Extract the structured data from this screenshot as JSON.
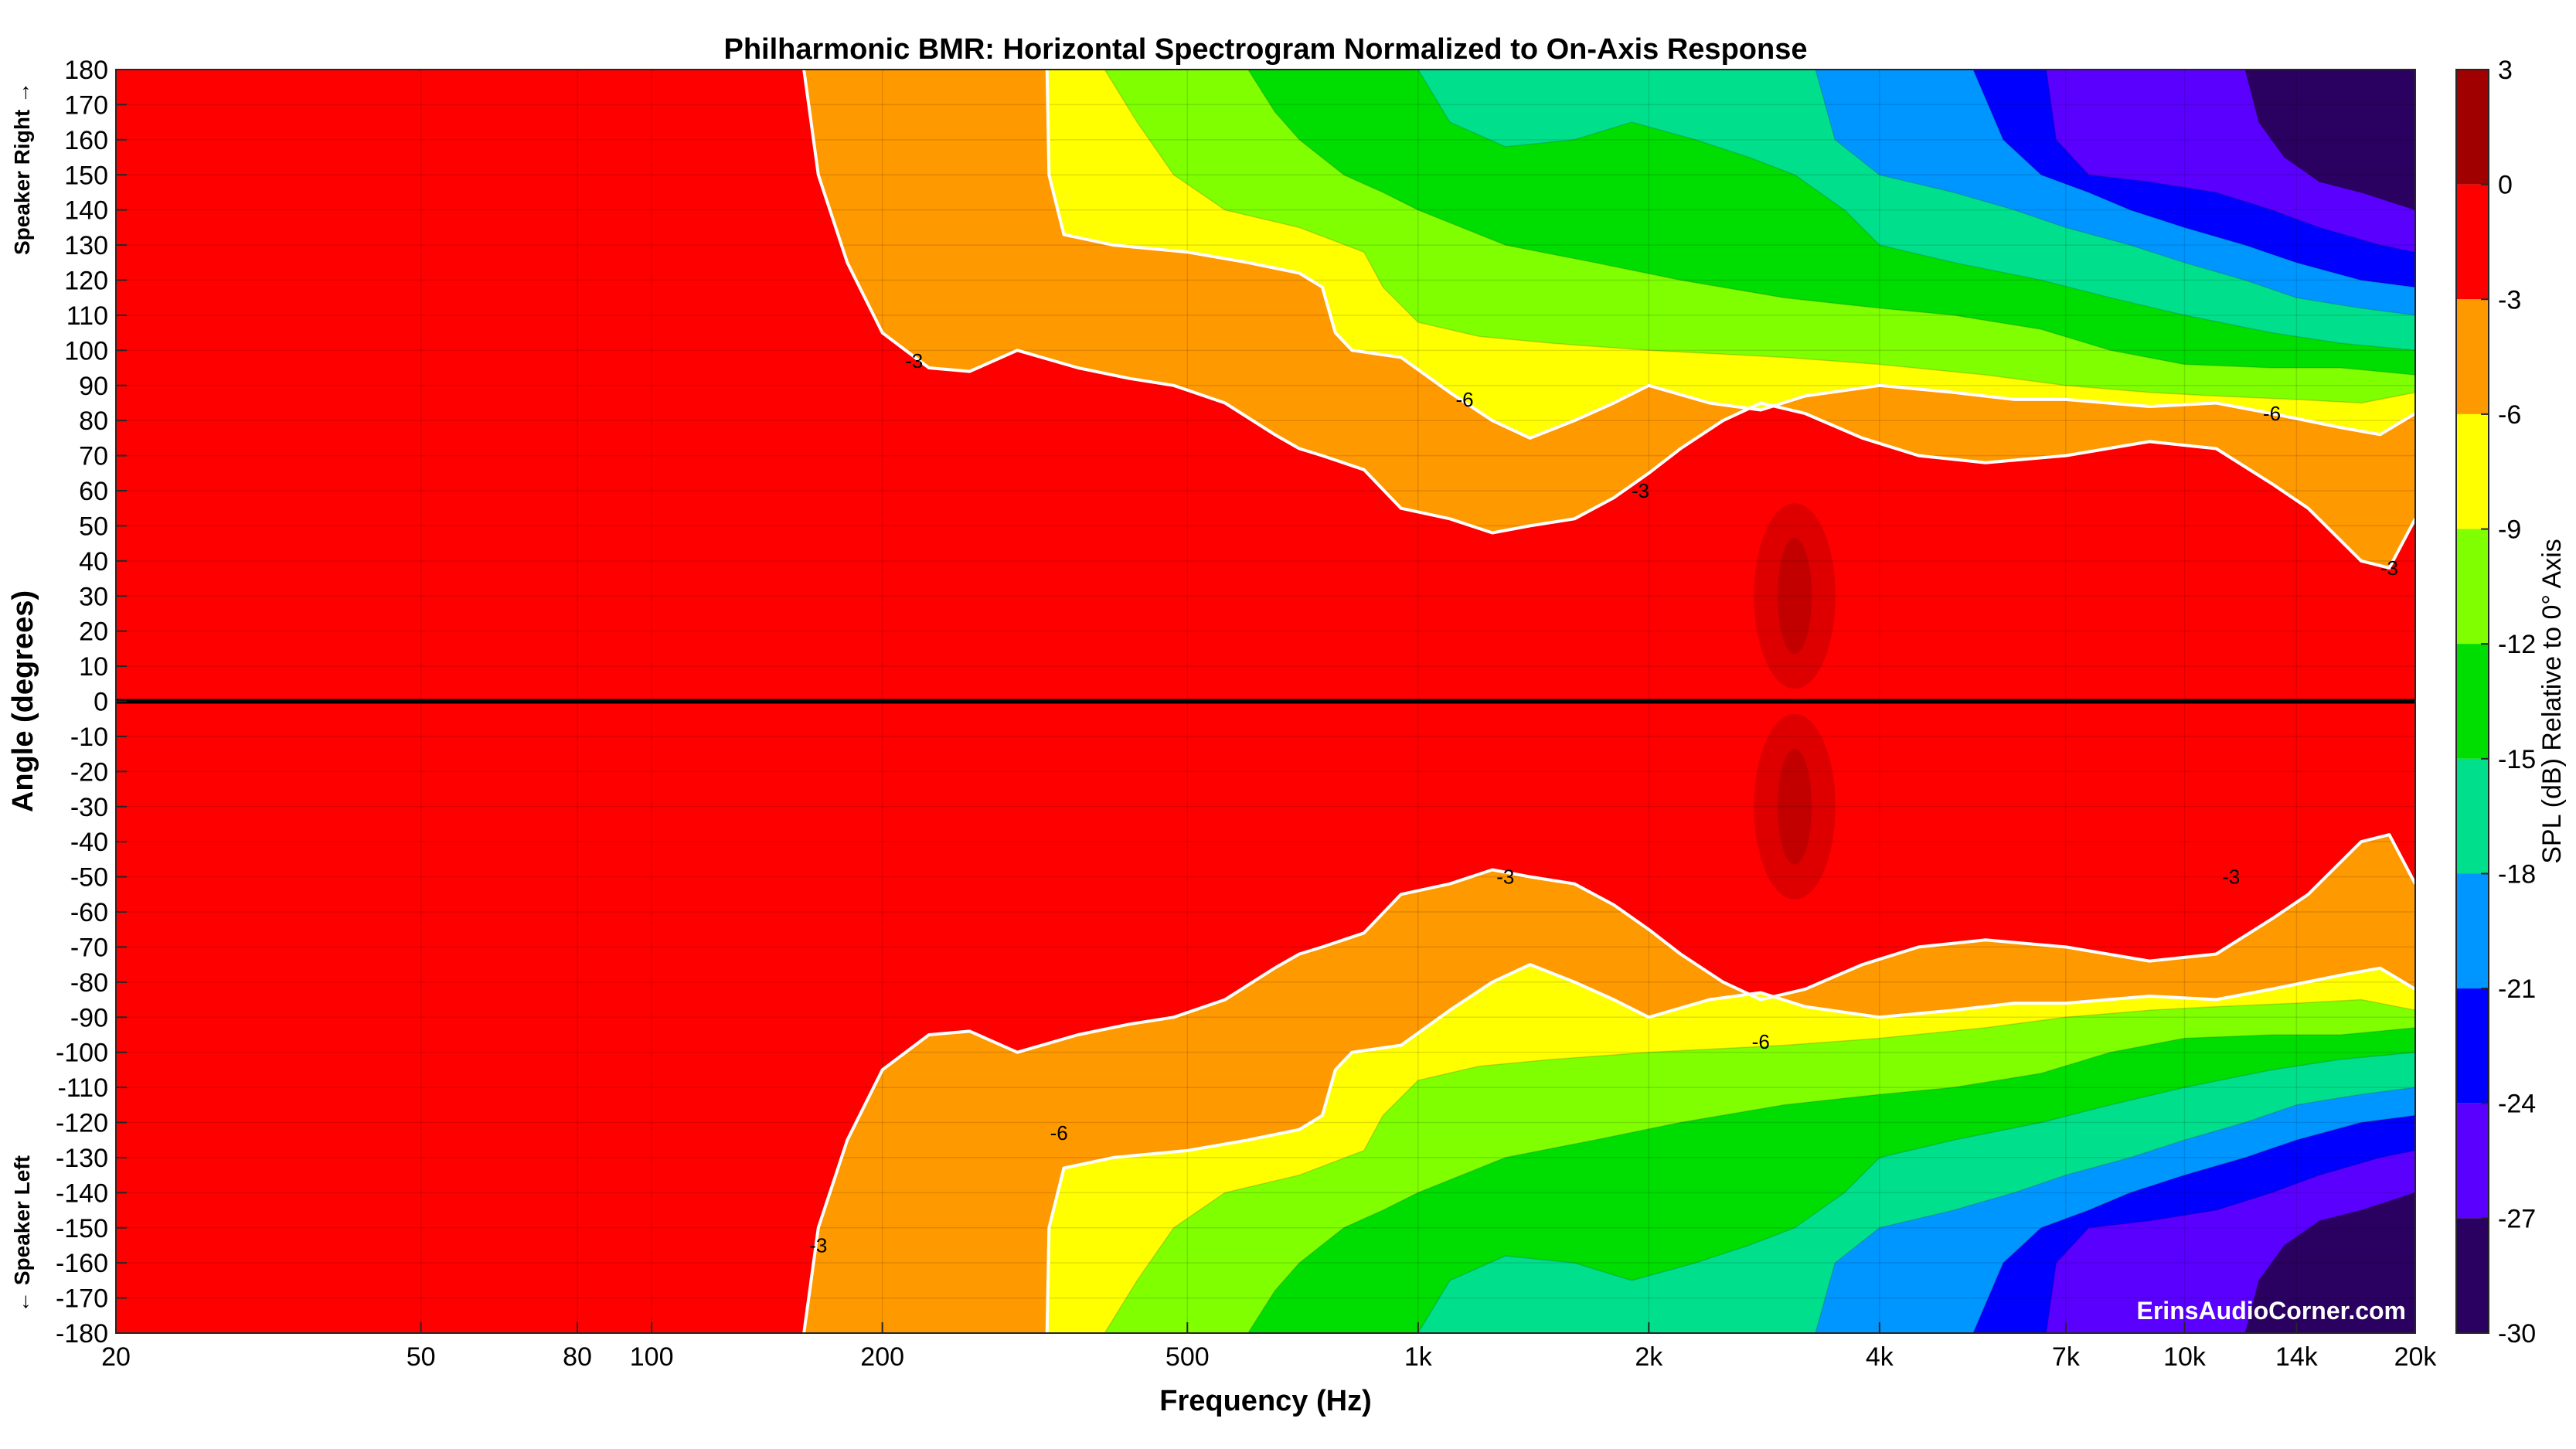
{
  "chart_data": {
    "type": "heatmap",
    "title": "Philharmonic BMR: Horizontal Spectrogram Normalized to On-Axis Response",
    "xlabel": "Frequency (Hz)",
    "ylabel": "Angle (degrees)",
    "x_scale": "log",
    "xlim": [
      20,
      20000
    ],
    "ylim": [
      -180,
      180
    ],
    "x_ticks": [
      20,
      50,
      80,
      100,
      200,
      500,
      1000,
      2000,
      4000,
      7000,
      10000,
      14000,
      20000
    ],
    "x_tick_labels": [
      "20",
      "50",
      "80",
      "100",
      "200",
      "500",
      "1k",
      "2k",
      "4k",
      "7k",
      "10k",
      "14k",
      "20k"
    ],
    "y_ticks": [
      180,
      170,
      160,
      150,
      140,
      130,
      120,
      110,
      100,
      90,
      80,
      70,
      60,
      50,
      40,
      30,
      20,
      10,
      0,
      -10,
      -20,
      -30,
      -40,
      -50,
      -60,
      -70,
      -80,
      -90,
      -100,
      -110,
      -120,
      -130,
      -140,
      -150,
      -160,
      -170,
      -180
    ],
    "side_labels": {
      "top": "Speaker Right →",
      "bottom": "← Speaker Left"
    },
    "grid": true,
    "colorbar": {
      "title": "SPL (dB) Relative to 0° Axis",
      "range": [
        -30,
        3
      ],
      "ticks": [
        3,
        0,
        -3,
        -6,
        -9,
        -12,
        -15,
        -18,
        -21,
        -24,
        -27,
        -30
      ],
      "levels": [
        {
          "from": 0,
          "to": 3,
          "color": "#a00000"
        },
        {
          "from": -3,
          "to": 0,
          "color": "#ff0000"
        },
        {
          "from": -6,
          "to": -3,
          "color": "#ff9900"
        },
        {
          "from": -9,
          "to": -6,
          "color": "#ffff00"
        },
        {
          "from": -12,
          "to": -9,
          "color": "#7fff00"
        },
        {
          "from": -15,
          "to": -12,
          "color": "#00dd00"
        },
        {
          "from": -18,
          "to": -15,
          "color": "#00e08c"
        },
        {
          "from": -21,
          "to": -18,
          "color": "#0096ff"
        },
        {
          "from": -24,
          "to": -21,
          "color": "#0000ff"
        },
        {
          "from": -27,
          "to": -24,
          "color": "#5a00ff"
        },
        {
          "from": -30,
          "to": -27,
          "color": "#2a0060"
        }
      ]
    },
    "contour_labels": [
      {
        "text": "-3",
        "freq": 220,
        "angle": 97
      },
      {
        "text": "-6",
        "freq": 1150,
        "angle": 86
      },
      {
        "text": "-3",
        "freq": 1950,
        "angle": 60
      },
      {
        "text": "-6",
        "freq": 13000,
        "angle": 82
      },
      {
        "text": "-3",
        "freq": 18500,
        "angle": 38
      },
      {
        "text": "-3",
        "freq": 1300,
        "angle": -50
      },
      {
        "text": "-3",
        "freq": 11500,
        "angle": -50
      },
      {
        "text": "-6",
        "freq": 2800,
        "angle": -97
      },
      {
        "text": "-6",
        "freq": 340,
        "angle": -123
      },
      {
        "text": "-3",
        "freq": 165,
        "angle": -155
      }
    ],
    "isolines_upper_half": [
      {
        "db": -3,
        "points": [
          [
            158,
            180
          ],
          [
            165,
            150
          ],
          [
            180,
            125
          ],
          [
            200,
            105
          ],
          [
            230,
            95
          ],
          [
            260,
            94
          ],
          [
            300,
            100
          ],
          [
            360,
            95
          ],
          [
            420,
            92
          ],
          [
            480,
            90
          ],
          [
            560,
            85
          ],
          [
            650,
            76
          ],
          [
            700,
            72
          ],
          [
            750,
            70
          ],
          [
            850,
            66
          ],
          [
            950,
            55
          ],
          [
            1100,
            52
          ],
          [
            1250,
            48
          ],
          [
            1400,
            50
          ],
          [
            1600,
            52
          ],
          [
            1800,
            58
          ],
          [
            2000,
            65
          ],
          [
            2200,
            72
          ],
          [
            2500,
            80
          ],
          [
            2800,
            85
          ],
          [
            3200,
            82
          ],
          [
            3800,
            75
          ],
          [
            4500,
            70
          ],
          [
            5500,
            68
          ],
          [
            7000,
            70
          ],
          [
            9000,
            74
          ],
          [
            11000,
            72
          ],
          [
            13000,
            62
          ],
          [
            14500,
            55
          ],
          [
            17000,
            40
          ],
          [
            18500,
            38
          ],
          [
            20000,
            52
          ]
        ]
      },
      {
        "db": -6,
        "points": [
          [
            328,
            180
          ],
          [
            330,
            150
          ],
          [
            345,
            133
          ],
          [
            400,
            130
          ],
          [
            500,
            128
          ],
          [
            600,
            125
          ],
          [
            700,
            122
          ],
          [
            750,
            118
          ],
          [
            780,
            105
          ],
          [
            820,
            100
          ],
          [
            950,
            98
          ],
          [
            1100,
            88
          ],
          [
            1250,
            80
          ],
          [
            1400,
            75
          ],
          [
            1600,
            80
          ],
          [
            1800,
            85
          ],
          [
            2000,
            90
          ],
          [
            2400,
            85
          ],
          [
            2800,
            83
          ],
          [
            3200,
            87
          ],
          [
            4000,
            90
          ],
          [
            5000,
            88
          ],
          [
            6000,
            86
          ],
          [
            7000,
            86
          ],
          [
            9000,
            84
          ],
          [
            11000,
            85
          ],
          [
            13000,
            82
          ],
          [
            16000,
            78
          ],
          [
            18000,
            76
          ],
          [
            20000,
            82
          ]
        ]
      },
      {
        "db": -9,
        "points": [
          [
            390,
            180
          ],
          [
            430,
            165
          ],
          [
            480,
            150
          ],
          [
            560,
            140
          ],
          [
            700,
            135
          ],
          [
            850,
            128
          ],
          [
            900,
            118
          ],
          [
            1000,
            108
          ],
          [
            1200,
            104
          ],
          [
            1500,
            102
          ],
          [
            2000,
            100
          ],
          [
            3000,
            98
          ],
          [
            4000,
            96
          ],
          [
            5500,
            93
          ],
          [
            7000,
            90
          ],
          [
            9000,
            88
          ],
          [
            11000,
            87
          ],
          [
            14000,
            86
          ],
          [
            17000,
            85
          ],
          [
            20000,
            88
          ]
        ]
      },
      {
        "db": -12,
        "points": [
          [
            600,
            180
          ],
          [
            650,
            168
          ],
          [
            700,
            160
          ],
          [
            800,
            150
          ],
          [
            900,
            145
          ],
          [
            1000,
            140
          ],
          [
            1300,
            130
          ],
          [
            1700,
            125
          ],
          [
            2200,
            120
          ],
          [
            3000,
            115
          ],
          [
            4000,
            112
          ],
          [
            5000,
            110
          ],
          [
            6500,
            106
          ],
          [
            8000,
            100
          ],
          [
            10000,
            96
          ],
          [
            13000,
            95
          ],
          [
            16000,
            95
          ],
          [
            20000,
            93
          ]
        ]
      },
      {
        "db": -15,
        "points": [
          [
            1000,
            180
          ],
          [
            1100,
            165
          ],
          [
            1300,
            158
          ],
          [
            1600,
            160
          ],
          [
            1900,
            165
          ],
          [
            2300,
            160
          ],
          [
            2700,
            155
          ],
          [
            3100,
            150
          ],
          [
            3600,
            140
          ],
          [
            4000,
            130
          ],
          [
            5000,
            125
          ],
          [
            6500,
            120
          ],
          [
            8000,
            115
          ],
          [
            10000,
            110
          ],
          [
            13000,
            105
          ],
          [
            16000,
            102
          ],
          [
            20000,
            100
          ]
        ]
      },
      {
        "db": -18,
        "points": [
          [
            3300,
            180
          ],
          [
            3500,
            160
          ],
          [
            4000,
            150
          ],
          [
            5000,
            145
          ],
          [
            6000,
            140
          ],
          [
            7000,
            135
          ],
          [
            8500,
            130
          ],
          [
            10000,
            125
          ],
          [
            12000,
            120
          ],
          [
            14000,
            115
          ],
          [
            17000,
            112
          ],
          [
            20000,
            110
          ]
        ]
      },
      {
        "db": -21,
        "points": [
          [
            5300,
            180
          ],
          [
            5800,
            160
          ],
          [
            6500,
            150
          ],
          [
            7500,
            145
          ],
          [
            8500,
            140
          ],
          [
            10000,
            135
          ],
          [
            12000,
            130
          ],
          [
            14000,
            125
          ],
          [
            17000,
            120
          ],
          [
            20000,
            118
          ]
        ]
      },
      {
        "db": -24,
        "points": [
          [
            6600,
            180
          ],
          [
            6800,
            160
          ],
          [
            7500,
            150
          ],
          [
            9000,
            148
          ],
          [
            11000,
            145
          ],
          [
            13000,
            140
          ],
          [
            15000,
            135
          ],
          [
            18000,
            130
          ],
          [
            20000,
            128
          ]
        ]
      },
      {
        "db": -27,
        "points": [
          [
            12000,
            180
          ],
          [
            12500,
            165
          ],
          [
            13500,
            155
          ],
          [
            15000,
            148
          ],
          [
            17000,
            145
          ],
          [
            20000,
            140
          ]
        ]
      }
    ],
    "watermark": "ErinsAudioCorner.com"
  }
}
